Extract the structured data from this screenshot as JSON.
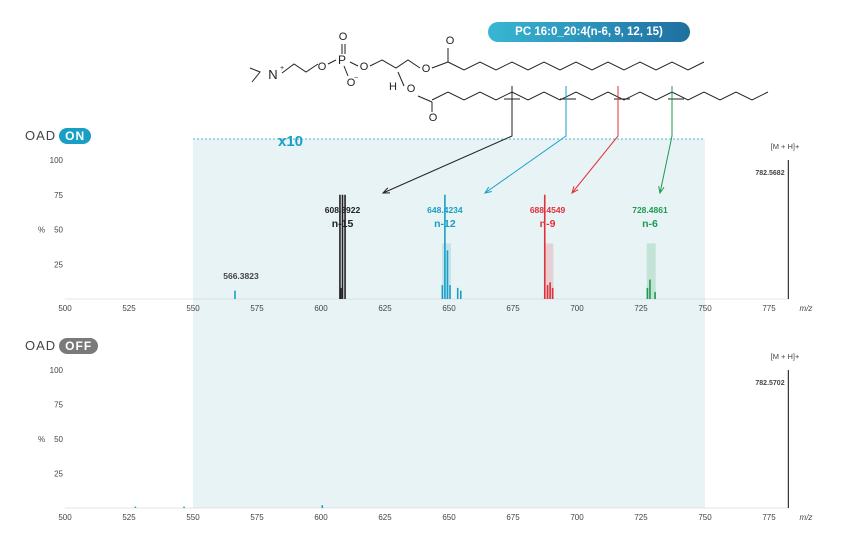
{
  "molecule": {
    "name": "PC 16:0_20:4(n-6, 9, 12, 15)"
  },
  "magnification_label": "x10",
  "colors": {
    "n15": "#222222",
    "n12": "#1a9fc4",
    "n9": "#e0303a",
    "n6": "#1c9a4e",
    "shade": "#e8f3f6",
    "on_pill": "#1a9fc4",
    "off_pill": "#7a7a7a",
    "axis": "#cccccc",
    "molecular_ion": "#333333",
    "low_peak": "#1aa0c8"
  },
  "chart_data": [
    {
      "type": "bar",
      "panel": "OAD ON",
      "mode_label": "OAD",
      "mode_state": "ON",
      "xlim": [
        500,
        790
      ],
      "ylim": [
        0,
        100
      ],
      "x_ticks": [
        500,
        525,
        550,
        575,
        600,
        625,
        650,
        675,
        700,
        725,
        750,
        775
      ],
      "y_ticks": [
        25,
        50,
        75,
        100
      ],
      "y_axis_unit": "%",
      "x_axis_unit": "m/z",
      "zoom_region": [
        550,
        750
      ],
      "molecular_ion": {
        "label": "[M + H]+",
        "mz": 782.5682,
        "intensity": 100
      },
      "annotations": [
        {
          "mz_label": "566.3823",
          "position_name": "",
          "color_key": "low_peak"
        },
        {
          "mz_label": "608.3922",
          "position_name": "n-15",
          "color_key": "n15"
        },
        {
          "mz_label": "648.4234",
          "position_name": "n-12",
          "color_key": "n12"
        },
        {
          "mz_label": "688.4549",
          "position_name": "n-9",
          "color_key": "n9"
        },
        {
          "mz_label": "728.4861",
          "position_name": "n-6",
          "color_key": "n6"
        }
      ],
      "peaks": [
        {
          "mz": 566.4,
          "intensity": 6,
          "color_key": "low_peak"
        },
        {
          "mz": 607.4,
          "intensity": 75,
          "color_key": "n15"
        },
        {
          "mz": 608.4,
          "intensity": 75,
          "color_key": "n15"
        },
        {
          "mz": 609.4,
          "intensity": 75,
          "color_key": "n15"
        },
        {
          "mz": 607.8,
          "intensity": 8,
          "color_key": "n15"
        },
        {
          "mz": 647.4,
          "intensity": 10,
          "color_key": "n12"
        },
        {
          "mz": 648.4,
          "intensity": 75,
          "color_key": "n12"
        },
        {
          "mz": 649.4,
          "intensity": 35,
          "color_key": "n12"
        },
        {
          "mz": 650.4,
          "intensity": 10,
          "color_key": "n12"
        },
        {
          "mz": 653.4,
          "intensity": 8,
          "color_key": "n12"
        },
        {
          "mz": 654.6,
          "intensity": 6,
          "color_key": "n12"
        },
        {
          "mz": 687.4,
          "intensity": 75,
          "color_key": "n9"
        },
        {
          "mz": 688.5,
          "intensity": 10,
          "color_key": "n9"
        },
        {
          "mz": 689.5,
          "intensity": 12,
          "color_key": "n9"
        },
        {
          "mz": 690.5,
          "intensity": 8,
          "color_key": "n9"
        },
        {
          "mz": 727.5,
          "intensity": 8,
          "color_key": "n6"
        },
        {
          "mz": 728.5,
          "intensity": 14,
          "color_key": "n6"
        },
        {
          "mz": 730.5,
          "intensity": 5,
          "color_key": "n6"
        }
      ],
      "highlight_bands": [
        {
          "center": 649,
          "color_key": "n12"
        },
        {
          "center": 689,
          "color_key": "n9"
        },
        {
          "center": 729,
          "color_key": "n6"
        }
      ]
    },
    {
      "type": "bar",
      "panel": "OAD OFF",
      "mode_label": "OAD",
      "mode_state": "OFF",
      "xlim": [
        500,
        790
      ],
      "ylim": [
        0,
        100
      ],
      "x_ticks": [
        500,
        525,
        550,
        575,
        600,
        625,
        650,
        675,
        700,
        725,
        750,
        775
      ],
      "y_ticks": [
        25,
        50,
        75,
        100
      ],
      "y_axis_unit": "%",
      "x_axis_unit": "m/z",
      "zoom_region": [
        550,
        750
      ],
      "molecular_ion": {
        "label": "[M + H]+",
        "mz": 782.5702,
        "intensity": 100
      },
      "annotations": [],
      "peaks": [
        {
          "mz": 527.5,
          "intensity": 1,
          "color_key": "low_peak"
        },
        {
          "mz": 546.5,
          "intensity": 1,
          "color_key": "low_peak"
        },
        {
          "mz": 600.5,
          "intensity": 2,
          "color_key": "low_peak"
        }
      ],
      "highlight_bands": []
    }
  ]
}
